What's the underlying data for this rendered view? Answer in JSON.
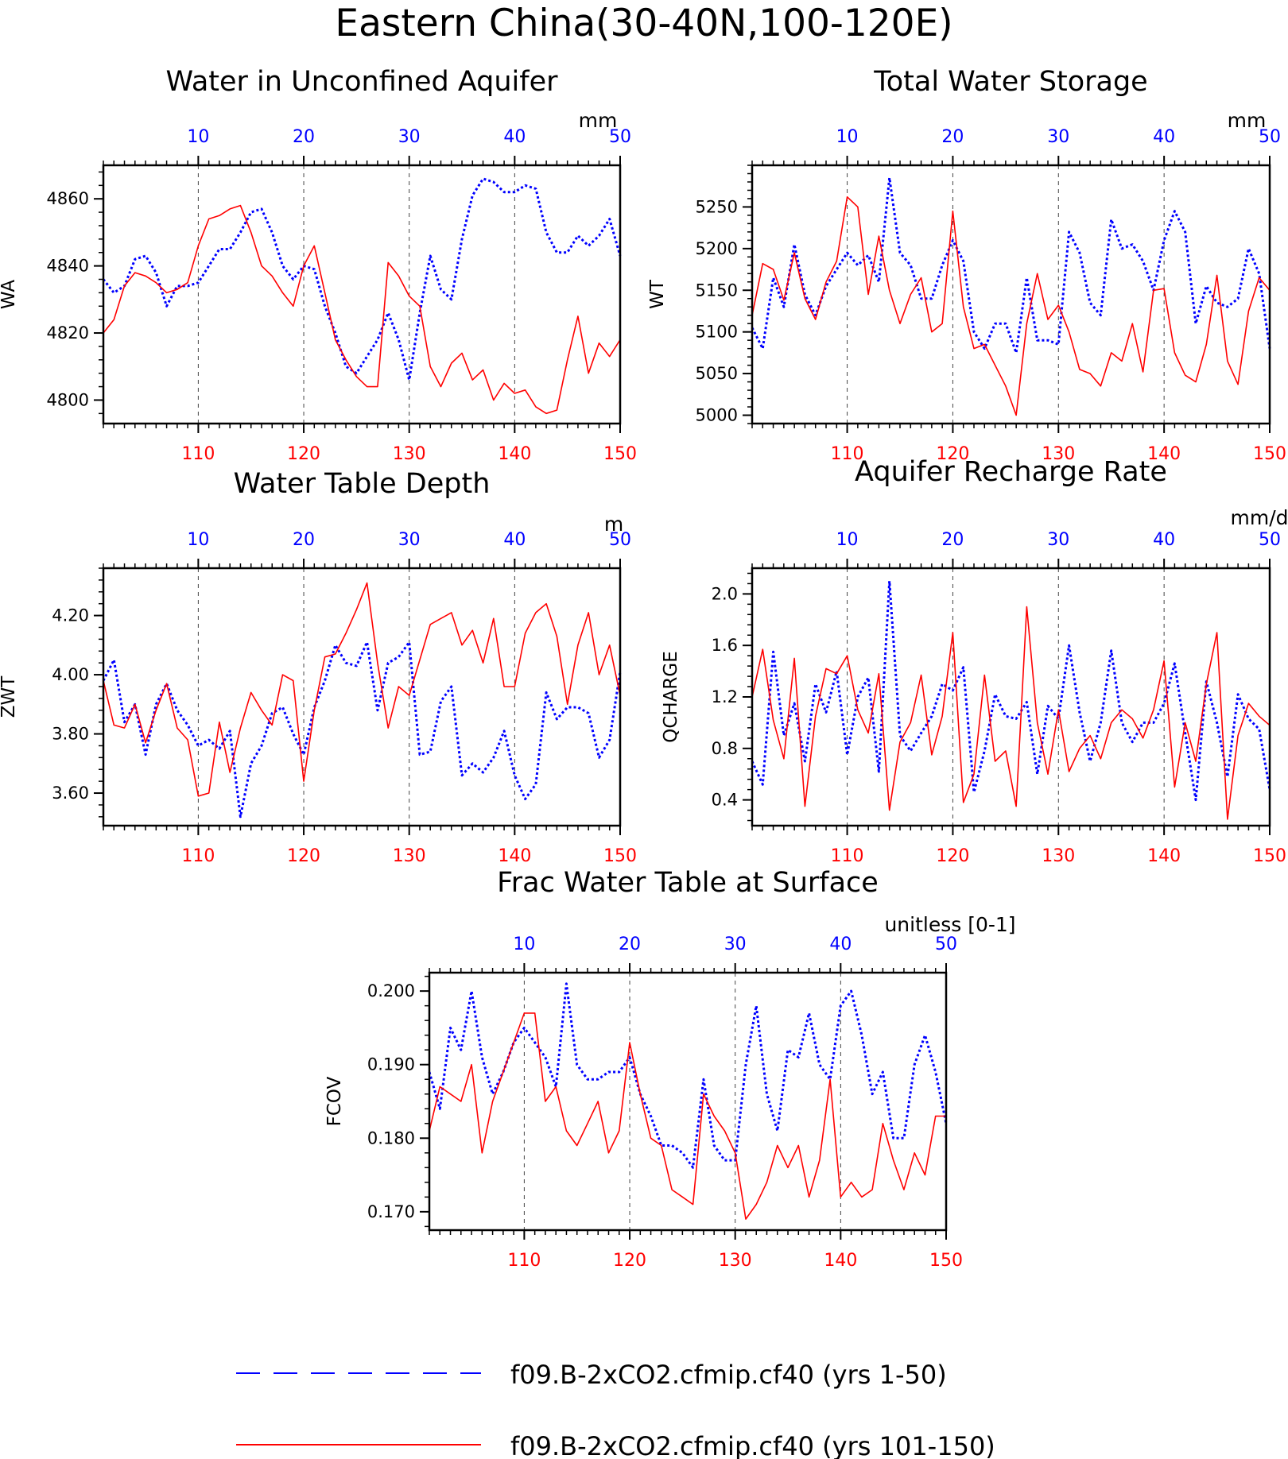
{
  "title": "Eastern China(30-40N,100-120E)",
  "colors": {
    "blue": "#0000ff",
    "red": "#ff0000",
    "axis": "#000000",
    "grid": "#444444"
  },
  "legend": [
    {
      "label": "f09.B-2xCO2.cfmip.cf40 (yrs 1-50)",
      "color": "#0000ff",
      "style": "dashed"
    },
    {
      "label": "f09.B-2xCO2.cfmip.cf40 (yrs 101-150)",
      "color": "#ff0000",
      "style": "solid"
    }
  ],
  "chart_data": [
    {
      "type": "line",
      "title": "Water in Unconfined Aquifer",
      "units": "mm",
      "ylabel": "WA",
      "ylim": [
        4793,
        4870
      ],
      "yticks": [
        4800,
        4820,
        4840,
        4860
      ],
      "x_bottom": {
        "range": [
          101,
          150
        ],
        "ticks": [
          110,
          120,
          130,
          140,
          150
        ]
      },
      "x_top": {
        "range": [
          1,
          50
        ],
        "ticks": [
          10,
          20,
          30,
          40,
          50
        ]
      },
      "series": [
        {
          "axis": "top",
          "color": "#0000ff",
          "style": "dashed",
          "values": [
            4836,
            4832,
            4834,
            4842,
            4843,
            4838,
            4828,
            4834,
            4834,
            4835,
            4840,
            4845,
            4845,
            4850,
            4856,
            4857,
            4850,
            4840,
            4836,
            4840,
            4839,
            4828,
            4820,
            4810,
            4808,
            4813,
            4818,
            4826,
            4818,
            4806,
            4826,
            4843,
            4833,
            4830,
            4848,
            4861,
            4866,
            4865,
            4862,
            4862,
            4864,
            4863,
            4850,
            4844,
            4844,
            4849,
            4846,
            4849,
            4854,
            4843
          ]
        },
        {
          "axis": "bottom",
          "color": "#ff0000",
          "style": "solid",
          "values": [
            4820,
            4824,
            4834,
            4838,
            4837,
            4835,
            4832,
            4833,
            4835,
            4846,
            4854,
            4855,
            4857,
            4858,
            4850,
            4840,
            4837,
            4832,
            4828,
            4840,
            4846,
            4832,
            4818,
            4812,
            4807,
            4804,
            4804,
            4841,
            4837,
            4831,
            4828,
            4810,
            4804,
            4811,
            4814,
            4806,
            4809,
            4800,
            4805,
            4802,
            4803,
            4798,
            4796,
            4797,
            4812,
            4825,
            4808,
            4817,
            4813,
            4818
          ]
        }
      ]
    },
    {
      "type": "line",
      "title": "Total Water Storage",
      "units": "mm",
      "ylabel": "WT",
      "ylim": [
        4990,
        5300
      ],
      "yticks": [
        5000,
        5050,
        5100,
        5150,
        5200,
        5250
      ],
      "x_bottom": {
        "range": [
          101,
          150
        ],
        "ticks": [
          110,
          120,
          130,
          140,
          150
        ]
      },
      "x_top": {
        "range": [
          1,
          50
        ],
        "ticks": [
          10,
          20,
          30,
          40,
          50
        ]
      },
      "series": [
        {
          "axis": "top",
          "color": "#0000ff",
          "style": "dashed",
          "values": [
            5105,
            5080,
            5165,
            5130,
            5205,
            5145,
            5120,
            5155,
            5175,
            5195,
            5180,
            5192,
            5160,
            5285,
            5195,
            5180,
            5140,
            5140,
            5180,
            5210,
            5185,
            5100,
            5080,
            5110,
            5110,
            5075,
            5165,
            5090,
            5090,
            5085,
            5220,
            5195,
            5135,
            5120,
            5235,
            5200,
            5205,
            5185,
            5150,
            5210,
            5245,
            5220,
            5110,
            5155,
            5135,
            5130,
            5140,
            5200,
            5170,
            5080
          ]
        },
        {
          "axis": "bottom",
          "color": "#ff0000",
          "style": "solid",
          "values": [
            5120,
            5182,
            5175,
            5138,
            5195,
            5140,
            5115,
            5160,
            5185,
            5262,
            5250,
            5145,
            5215,
            5150,
            5110,
            5145,
            5165,
            5100,
            5110,
            5245,
            5130,
            5080,
            5085,
            5060,
            5035,
            5000,
            5110,
            5170,
            5115,
            5132,
            5100,
            5055,
            5050,
            5035,
            5075,
            5065,
            5110,
            5052,
            5150,
            5152,
            5075,
            5048,
            5040,
            5085,
            5168,
            5065,
            5037,
            5125,
            5165,
            5150
          ]
        }
      ]
    },
    {
      "type": "line",
      "title": "Water Table Depth",
      "units": "m",
      "ylabel": "ZWT",
      "ylim": [
        3.49,
        4.36
      ],
      "yticks": [
        3.6,
        3.8,
        4.0,
        4.2
      ],
      "ytick_labels": [
        "3.60",
        "3.80",
        "4.00",
        "4.20"
      ],
      "x_bottom": {
        "range": [
          101,
          150
        ],
        "ticks": [
          110,
          120,
          130,
          140,
          150
        ]
      },
      "x_top": {
        "range": [
          1,
          50
        ],
        "ticks": [
          10,
          20,
          30,
          40,
          50
        ]
      },
      "series": [
        {
          "axis": "top",
          "color": "#0000ff",
          "style": "dashed",
          "values": [
            3.98,
            4.05,
            3.84,
            3.9,
            3.73,
            3.9,
            3.97,
            3.88,
            3.83,
            3.76,
            3.78,
            3.75,
            3.81,
            3.52,
            3.7,
            3.76,
            3.87,
            3.89,
            3.8,
            3.73,
            3.89,
            3.98,
            4.1,
            4.04,
            4.03,
            4.11,
            3.88,
            4.04,
            4.06,
            4.11,
            3.73,
            3.74,
            3.91,
            3.96,
            3.66,
            3.7,
            3.67,
            3.72,
            3.81,
            3.66,
            3.58,
            3.63,
            3.94,
            3.85,
            3.89,
            3.89,
            3.87,
            3.72,
            3.78,
            4.01
          ]
        },
        {
          "axis": "bottom",
          "color": "#ff0000",
          "style": "solid",
          "values": [
            3.98,
            3.83,
            3.82,
            3.9,
            3.77,
            3.88,
            3.97,
            3.82,
            3.78,
            3.59,
            3.6,
            3.84,
            3.67,
            3.82,
            3.94,
            3.88,
            3.83,
            4.0,
            3.98,
            3.64,
            3.88,
            4.06,
            4.07,
            4.14,
            4.22,
            4.31,
            4.04,
            3.82,
            3.96,
            3.93,
            4.05,
            4.17,
            4.19,
            4.21,
            4.1,
            4.15,
            4.04,
            4.19,
            3.96,
            3.96,
            4.14,
            4.21,
            4.24,
            4.13,
            3.9,
            4.1,
            4.21,
            4.0,
            4.1,
            3.93
          ]
        }
      ]
    },
    {
      "type": "line",
      "title": "Aquifer Recharge Rate",
      "units": "mm/d",
      "ylabel": "QCHARGE",
      "ylim": [
        0.2,
        2.2
      ],
      "yticks": [
        0.4,
        0.8,
        1.2,
        1.6,
        2.0
      ],
      "ytick_labels": [
        "0.4",
        "0.8",
        "1.2",
        "1.6",
        "2.0"
      ],
      "x_bottom": {
        "range": [
          101,
          150
        ],
        "ticks": [
          110,
          120,
          130,
          140,
          150
        ]
      },
      "x_top": {
        "range": [
          1,
          50
        ],
        "ticks": [
          10,
          20,
          30,
          40,
          50
        ]
      },
      "series": [
        {
          "axis": "top",
          "color": "#0000ff",
          "style": "dashed",
          "values": [
            0.7,
            0.52,
            1.55,
            0.9,
            1.15,
            0.7,
            1.3,
            1.08,
            1.4,
            0.75,
            1.2,
            1.35,
            0.62,
            2.1,
            0.9,
            0.78,
            0.92,
            1.05,
            1.3,
            1.25,
            1.43,
            0.46,
            0.78,
            1.22,
            1.05,
            1.03,
            1.16,
            0.6,
            1.13,
            1.03,
            1.6,
            1.08,
            0.7,
            1.0,
            1.56,
            1.0,
            0.85,
            1.0,
            1.0,
            1.15,
            1.46,
            0.92,
            0.4,
            1.32,
            1.0,
            0.58,
            1.22,
            1.03,
            0.95,
            0.48
          ]
        },
        {
          "axis": "bottom",
          "color": "#ff0000",
          "style": "solid",
          "values": [
            1.2,
            1.57,
            1.02,
            0.72,
            1.5,
            0.35,
            1.05,
            1.42,
            1.38,
            1.52,
            1.1,
            0.92,
            1.38,
            0.32,
            0.85,
            1.0,
            1.37,
            0.75,
            1.05,
            1.7,
            0.38,
            0.6,
            1.37,
            0.7,
            0.78,
            0.35,
            1.9,
            1.0,
            0.6,
            1.1,
            0.62,
            0.8,
            0.9,
            0.72,
            1.0,
            1.1,
            1.03,
            0.88,
            1.1,
            1.48,
            0.5,
            1.0,
            0.7,
            1.3,
            1.7,
            0.25,
            0.9,
            1.15,
            1.05,
            0.98
          ]
        }
      ]
    },
    {
      "type": "line",
      "title": "Frac Water Table at Surface",
      "units": "unitless [0-1]",
      "ylabel": "FCOV",
      "ylim": [
        0.1675,
        0.2025
      ],
      "yticks": [
        0.17,
        0.18,
        0.19,
        0.2
      ],
      "ytick_labels": [
        "0.170",
        "0.180",
        "0.190",
        "0.200"
      ],
      "x_bottom": {
        "range": [
          101,
          150
        ],
        "ticks": [
          110,
          120,
          130,
          140,
          150
        ]
      },
      "x_top": {
        "range": [
          1,
          50
        ],
        "ticks": [
          10,
          20,
          30,
          40,
          50
        ]
      },
      "series": [
        {
          "axis": "top",
          "color": "#0000ff",
          "style": "dashed",
          "values": [
            0.189,
            0.184,
            0.195,
            0.192,
            0.2,
            0.191,
            0.186,
            0.189,
            0.193,
            0.195,
            0.193,
            0.191,
            0.187,
            0.201,
            0.19,
            0.188,
            0.188,
            0.189,
            0.189,
            0.191,
            0.186,
            0.183,
            0.179,
            0.179,
            0.178,
            0.176,
            0.188,
            0.179,
            0.177,
            0.177,
            0.19,
            0.198,
            0.186,
            0.181,
            0.192,
            0.191,
            0.197,
            0.19,
            0.188,
            0.198,
            0.2,
            0.194,
            0.186,
            0.189,
            0.18,
            0.18,
            0.19,
            0.194,
            0.189,
            0.182
          ]
        },
        {
          "axis": "bottom",
          "color": "#ff0000",
          "style": "solid",
          "values": [
            0.181,
            0.187,
            0.186,
            0.185,
            0.19,
            0.178,
            0.185,
            0.189,
            0.193,
            0.197,
            0.197,
            0.185,
            0.187,
            0.181,
            0.179,
            0.182,
            0.185,
            0.178,
            0.181,
            0.193,
            0.186,
            0.18,
            0.179,
            0.173,
            0.172,
            0.171,
            0.186,
            0.183,
            0.181,
            0.178,
            0.169,
            0.171,
            0.174,
            0.179,
            0.176,
            0.179,
            0.172,
            0.177,
            0.188,
            0.172,
            0.174,
            0.172,
            0.173,
            0.182,
            0.177,
            0.173,
            0.178,
            0.175,
            0.183,
            0.183
          ]
        }
      ]
    }
  ]
}
